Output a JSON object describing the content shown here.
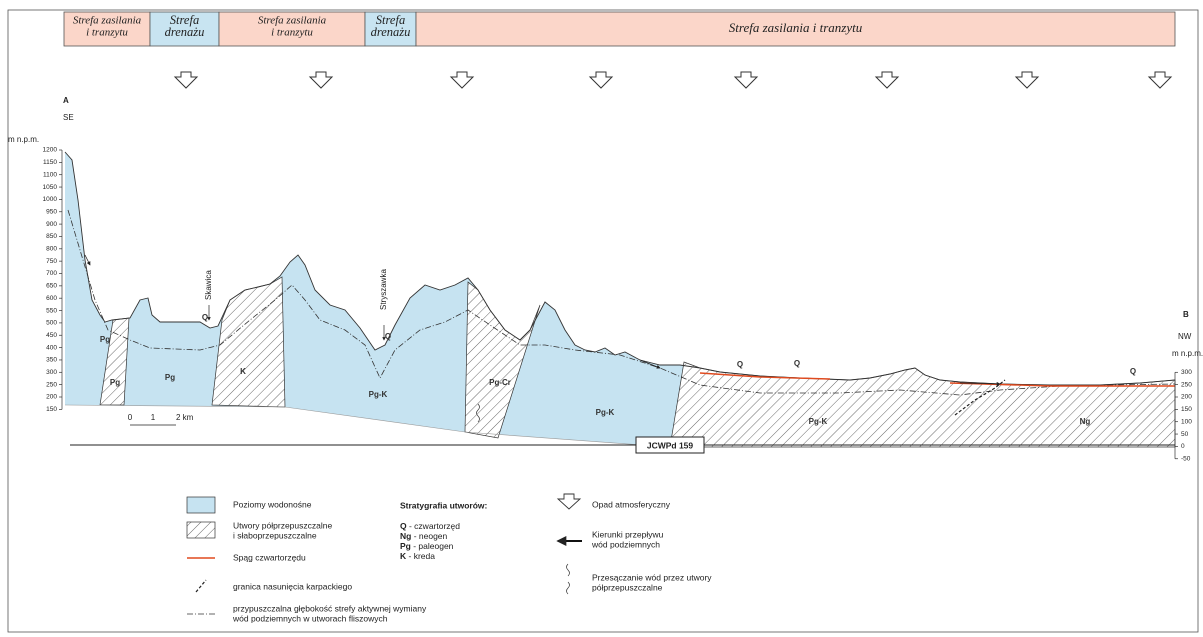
{
  "zones": [
    {
      "lines": [
        "Strefa zasilania",
        "i tranzytu"
      ],
      "kind": "supply"
    },
    {
      "lines": [
        "Strefa",
        "drenażu"
      ],
      "kind": "drain"
    },
    {
      "lines": [
        "Strefa zasilania",
        "i tranzytu"
      ],
      "kind": "supply"
    },
    {
      "lines": [
        "Strefa",
        "drenażu"
      ],
      "kind": "drain"
    },
    {
      "lines": [
        "Strefa zasilania i tranzytu"
      ],
      "kind": "supply"
    }
  ],
  "section": {
    "start_label": "A",
    "start_dir": "SE",
    "end_label": "B",
    "end_dir": "NW",
    "left_axis": {
      "unit": "m n.p.m.",
      "ticks": [
        1200,
        1150,
        1100,
        1050,
        1000,
        950,
        900,
        850,
        800,
        750,
        700,
        650,
        600,
        550,
        500,
        450,
        400,
        350,
        300,
        250,
        200,
        150
      ]
    },
    "right_axis": {
      "unit": "m n.p.m.",
      "ticks": [
        300,
        250,
        200,
        150,
        100,
        50,
        0,
        -50
      ]
    },
    "units": [
      "Pg",
      "Pg",
      "Pg",
      "K",
      "Pg-K",
      "Pg-Cr",
      "Pg-K",
      "Pg-K",
      "Ng"
    ],
    "quaternary": [
      "Q",
      "Q",
      "Q",
      "Q",
      "Q"
    ],
    "rivers": [
      "Skawica",
      "Stryszawka"
    ],
    "scale": [
      "0",
      "1",
      "2 km"
    ],
    "body": "JCWPd 159"
  },
  "legend": {
    "aquifer": "Poziomy wodonośne",
    "semi": [
      "Utwory półprzepuszczalne",
      "i słaboprzepuszczalne"
    ],
    "base_q": "Spąg czwartorzędu",
    "thrust": "granica nasunięcia karpackiego",
    "depth": [
      "przypuszczalna głębokość strefy aktywnej wymiany",
      "wód podziemnych w utworach fliszowych"
    ],
    "strat_title": "Stratygrafia utworów:",
    "strat": [
      {
        "abbr": "Q",
        "desc": " - czwartorzęd"
      },
      {
        "abbr": "Ng",
        "desc": " - neogen"
      },
      {
        "abbr": "Pg",
        "desc": " - paleogen"
      },
      {
        "abbr": "K",
        "desc": " - kreda"
      }
    ],
    "rain": "Opad atmosferyczny",
    "flow": [
      "Kierunki przepływu",
      "wód podziemnych"
    ],
    "seep": [
      "Przesączanie wód przez utwory",
      "półprzepuszczalne"
    ]
  }
}
